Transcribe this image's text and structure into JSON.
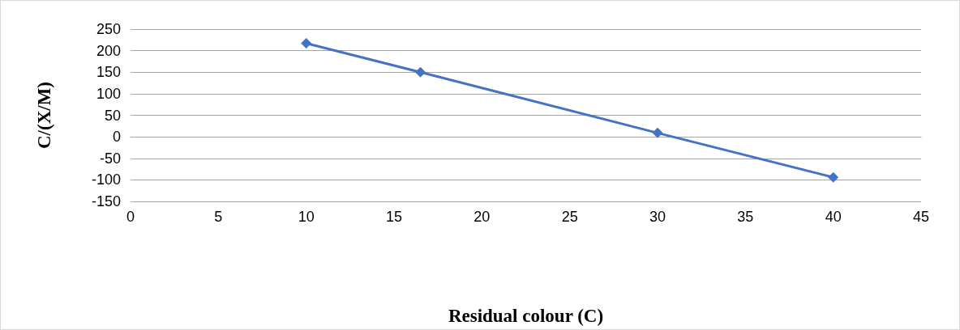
{
  "chart_data": {
    "type": "line",
    "xlabel": "Residual colour (C)",
    "ylabel": "C/(X/M)",
    "x": [
      10,
      16.5,
      30,
      40
    ],
    "series": [
      {
        "color": "#4472c4",
        "values": [
          217,
          150,
          9,
          -94
        ]
      }
    ],
    "xlim": [
      0,
      45
    ],
    "xticks": [
      0,
      5,
      10,
      15,
      20,
      25,
      30,
      35,
      40,
      45
    ],
    "ylim": [
      -150,
      250
    ],
    "yticks": [
      -150,
      -100,
      -50,
      0,
      50,
      100,
      150,
      200,
      250
    ],
    "grid": "y",
    "marker": "diamond",
    "line_style": "solid"
  }
}
